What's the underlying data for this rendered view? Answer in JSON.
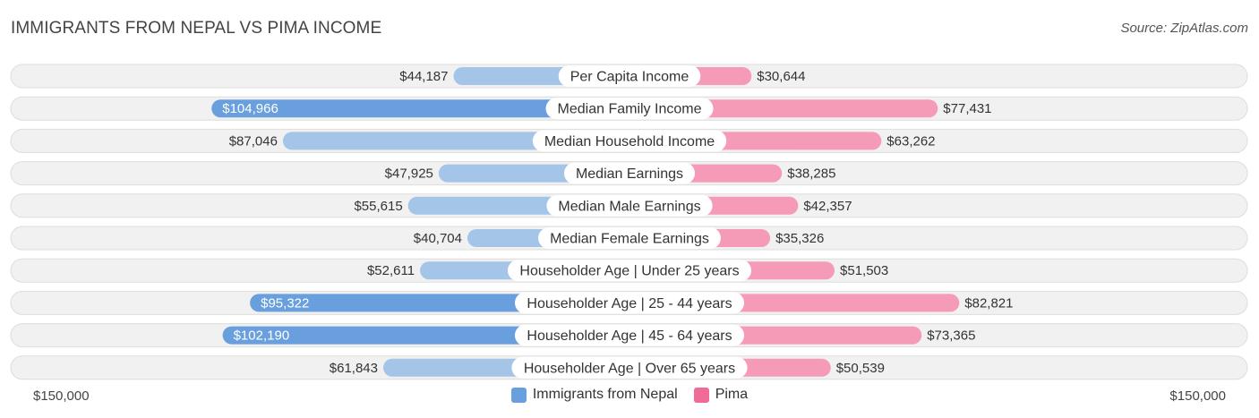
{
  "header": {
    "title": "IMMIGRANTS FROM NEPAL VS PIMA INCOME",
    "source": "Source: ZipAtlas.com"
  },
  "axis": {
    "left_label": "$150,000",
    "right_label": "$150,000"
  },
  "legend": {
    "left": "Immigrants from Nepal",
    "right": "Pima"
  },
  "colors": {
    "left_light": "#a4c4e8",
    "left_strong": "#6a9fde",
    "right_light": "#f59ab7",
    "right_strong": "#f06b97",
    "track": "#f1f1f1",
    "track_border": "#dddddd"
  },
  "chart_data": {
    "type": "bar",
    "orientation": "diverging-horizontal",
    "title": "IMMIGRANTS FROM NEPAL VS PIMA INCOME",
    "xlim": [
      -150000,
      150000
    ],
    "categories": [
      "Per Capita Income",
      "Median Family Income",
      "Median Household Income",
      "Median Earnings",
      "Median Male Earnings",
      "Median Female Earnings",
      "Householder Age | Under 25 years",
      "Householder Age | 25 - 44 years",
      "Householder Age | 45 - 64 years",
      "Householder Age | Over 65 years"
    ],
    "series": [
      {
        "name": "Immigrants from Nepal",
        "side": "left",
        "values": [
          44187,
          104966,
          87046,
          47925,
          55615,
          40704,
          52611,
          95322,
          102190,
          61843
        ],
        "labels": [
          "$44,187",
          "$104,966",
          "$87,046",
          "$47,925",
          "$55,615",
          "$40,704",
          "$52,611",
          "$95,322",
          "$102,190",
          "$61,843"
        ]
      },
      {
        "name": "Pima",
        "side": "right",
        "values": [
          30644,
          77431,
          63262,
          38285,
          42357,
          35326,
          51503,
          82821,
          73365,
          50539
        ],
        "labels": [
          "$30,644",
          "$77,431",
          "$63,262",
          "$38,285",
          "$42,357",
          "$35,326",
          "$51,503",
          "$82,821",
          "$73,365",
          "$50,539"
        ]
      }
    ]
  }
}
